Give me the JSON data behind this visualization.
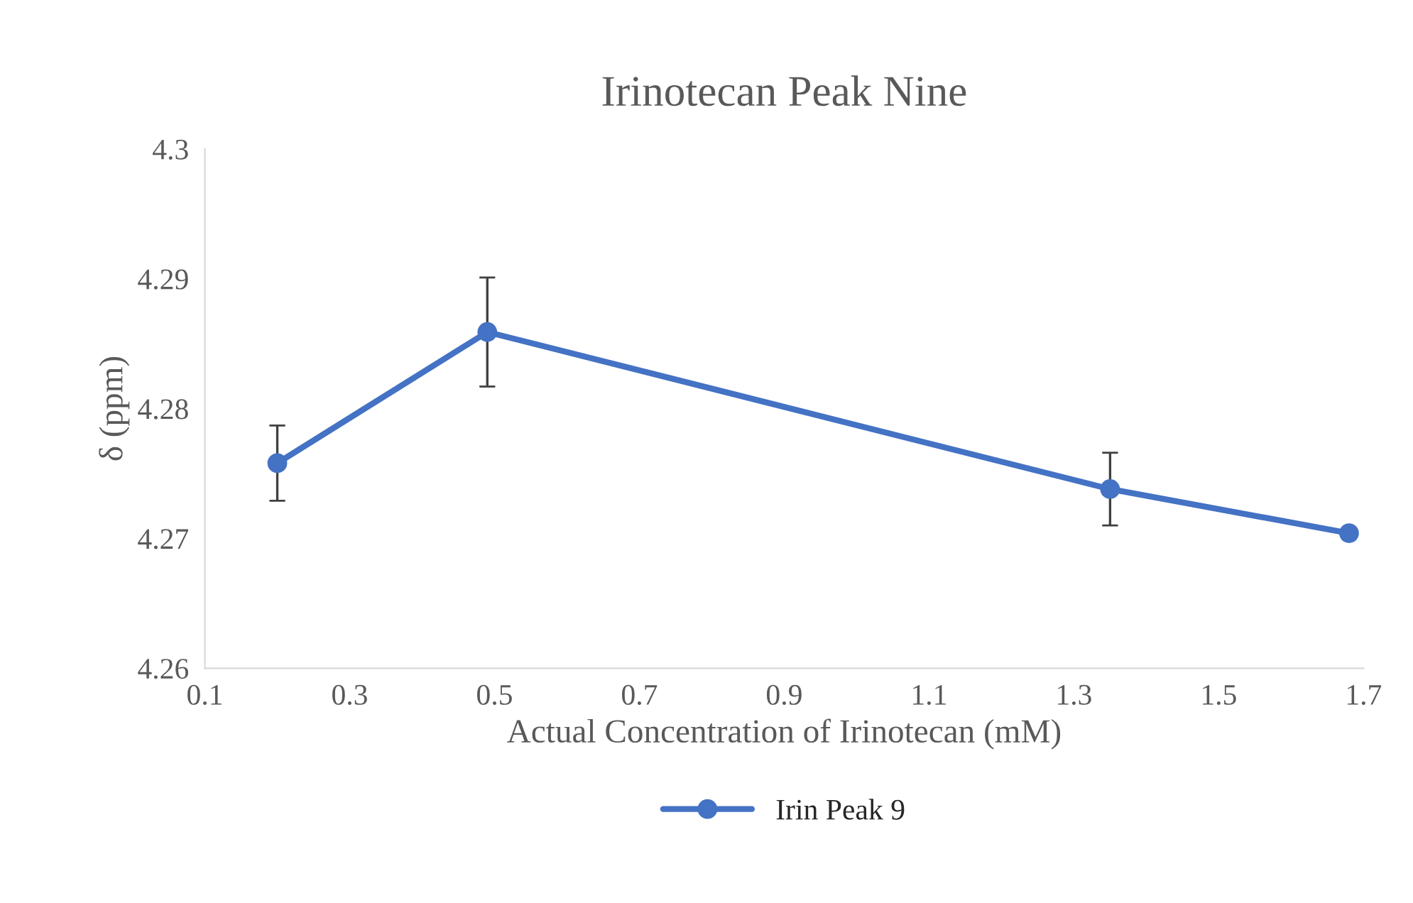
{
  "chart_data": {
    "type": "line",
    "title": "Irinotecan Peak Nine",
    "xlabel": "Actual Concentration of Irinotecan (mM)",
    "ylabel": "δ (ppm)",
    "x": [
      0.2,
      0.49,
      1.35,
      1.68
    ],
    "series": [
      {
        "name": "Irin Peak 9",
        "color": "#4472c4",
        "values": [
          4.2758,
          4.2859,
          4.2738,
          4.2704
        ],
        "errors": [
          0.0029,
          0.0042,
          0.0028,
          null
        ]
      }
    ],
    "xlim": [
      0.1,
      1.7
    ],
    "xticks": [
      0.1,
      0.3,
      0.5,
      0.7,
      0.9,
      1.1,
      1.3,
      1.5,
      1.7
    ],
    "ylim": [
      4.26,
      4.3
    ],
    "yticks": [
      4.26,
      4.27,
      4.28,
      4.29,
      4.3
    ],
    "grid": false,
    "legend": "bottom",
    "marker": "circle",
    "line_style": "solid"
  }
}
